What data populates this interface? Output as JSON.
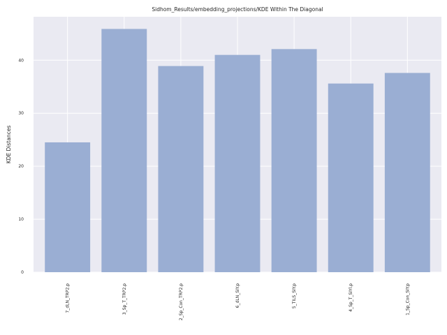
{
  "chart_data": {
    "type": "bar",
    "title": "Sidhom_Results/embedding_projections/KDE Within The Diagonal",
    "xlabel": "",
    "ylabel": "KDE Distances",
    "categories": [
      "7_dLN_TRP2.p",
      "3_Sp_T_TRP2.p",
      "2_Sp_Con_TRP2.p",
      "6_dLN_SIY.p",
      "5_TILS_SIY.p",
      "4_Sp_T_SIYl.p",
      "1_Sp_Con_SIY.p"
    ],
    "values": [
      24.5,
      45.9,
      38.9,
      41.0,
      42.1,
      35.6,
      37.6
    ],
    "ylim": [
      0,
      48.2
    ],
    "yticks": [
      0,
      10,
      20,
      30,
      40
    ],
    "grid": true,
    "bar_color": "#9aaed3",
    "background_color": "#eaeaf2"
  }
}
